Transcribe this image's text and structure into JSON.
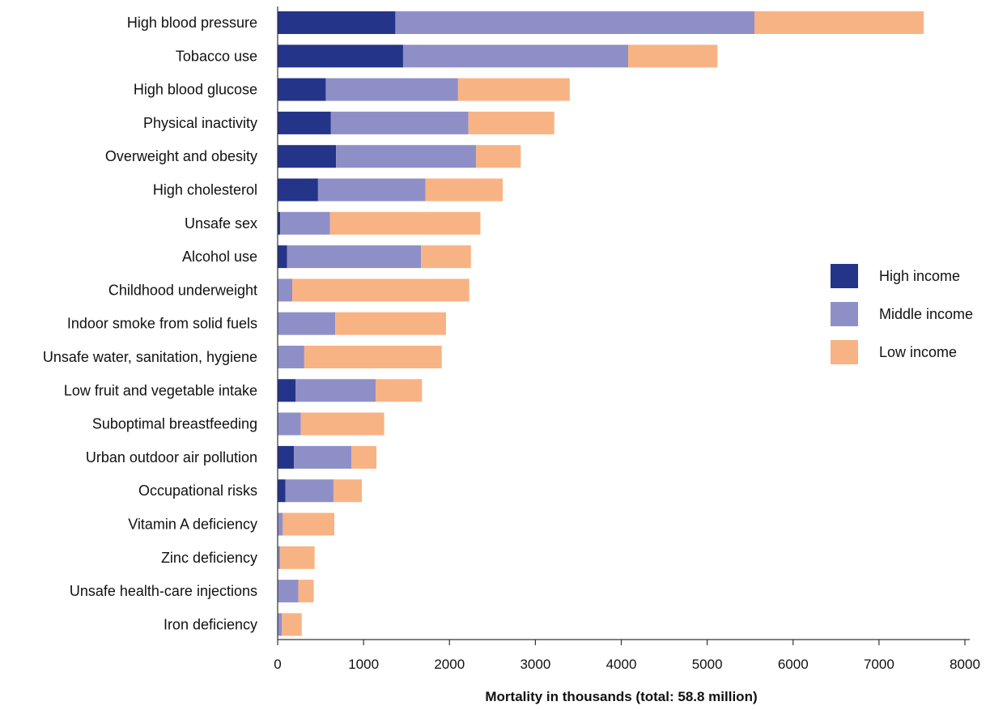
{
  "chart_data": {
    "type": "bar",
    "orientation": "horizontal",
    "stacked": true,
    "categories": [
      "High blood pressure",
      "Tobacco use",
      "High blood glucose",
      "Physical inactivity",
      "Overweight and obesity",
      "High cholesterol",
      "Unsafe sex",
      "Alcohol use",
      "Childhood underweight",
      "Indoor smoke from solid fuels",
      "Unsafe water, sanitation, hygiene",
      "Low fruit and vegetable intake",
      "Suboptimal breastfeeding",
      "Urban outdoor air pollution",
      "Occupational risks",
      "Vitamin A deficiency",
      "Zinc deficiency",
      "Unsafe health-care injections",
      "Iron deficiency"
    ],
    "series": [
      {
        "name": "High income",
        "color": "#243489",
        "values": [
          1370,
          1460,
          560,
          620,
          680,
          470,
          30,
          110,
          0,
          0,
          0,
          210,
          0,
          190,
          90,
          0,
          0,
          0,
          0
        ]
      },
      {
        "name": "Middle income",
        "color": "#8f8fc8",
        "values": [
          4180,
          2620,
          1540,
          1600,
          1630,
          1250,
          580,
          1560,
          170,
          670,
          310,
          930,
          270,
          670,
          560,
          60,
          30,
          240,
          50
        ]
      },
      {
        "name": "Low income",
        "color": "#f8b384",
        "values": [
          1970,
          1040,
          1300,
          1000,
          520,
          900,
          1750,
          580,
          2060,
          1290,
          1600,
          540,
          970,
          290,
          330,
          600,
          400,
          180,
          230
        ]
      }
    ],
    "xlabel": "Mortality in thousands (total: 58.8 million)",
    "ylabel": "",
    "title": "",
    "xlim": [
      0,
      8000
    ],
    "xticks": [
      "0",
      "1000",
      "2000",
      "3000",
      "4000",
      "5000",
      "6000",
      "7000",
      "8000"
    ],
    "grid": false,
    "legend": "right"
  }
}
